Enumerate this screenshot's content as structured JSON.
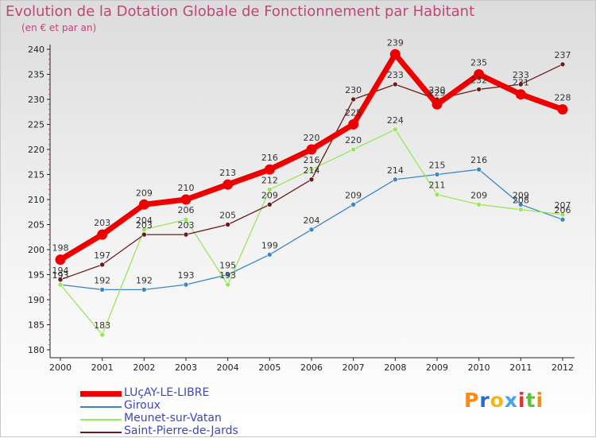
{
  "chart_data": {
    "type": "line",
    "title": "Evolution de la Dotation Globale de Fonctionnement par Habitant",
    "subtitle": "(en € et par an)",
    "categories": [
      "2000",
      "2001",
      "2002",
      "2003",
      "2004",
      "2005",
      "2006",
      "2007",
      "2008",
      "2009",
      "2010",
      "2011",
      "2012"
    ],
    "ylim": [
      180,
      240
    ],
    "yticks": [
      180,
      185,
      190,
      195,
      200,
      205,
      210,
      215,
      220,
      225,
      230,
      235,
      240
    ],
    "grid": false,
    "legend_position": "bottom-left",
    "series": [
      {
        "name": "LUçAY-LE-LIBRE",
        "color": "#ee0000",
        "values": [
          198,
          203,
          209,
          210,
          213,
          216,
          220,
          225,
          239,
          229,
          235,
          231,
          228
        ]
      },
      {
        "name": "Giroux",
        "color": "#3d86c6",
        "values": [
          193,
          192,
          192,
          193,
          195,
          199,
          204,
          209,
          214,
          215,
          216,
          209,
          206
        ]
      },
      {
        "name": "Meunet-sur-Vatan",
        "color": "#99e65a",
        "values": [
          193,
          183,
          204,
          206,
          193,
          212,
          216,
          220,
          224,
          211,
          209,
          208,
          207
        ]
      },
      {
        "name": "Saint-Pierre-de-Jards",
        "color": "#6b1a1a",
        "values": [
          194,
          197,
          203,
          203,
          205,
          209,
          214,
          230,
          233,
          230,
          232,
          233,
          237
        ]
      }
    ]
  },
  "branding": {
    "logo_text": "Proxiti",
    "letter_colors": [
      "#f28c1e",
      "#1f6fd4",
      "#f2b619",
      "#4aa3e8",
      "#e0312b",
      "#5cc23a",
      "#f28c1e"
    ]
  }
}
